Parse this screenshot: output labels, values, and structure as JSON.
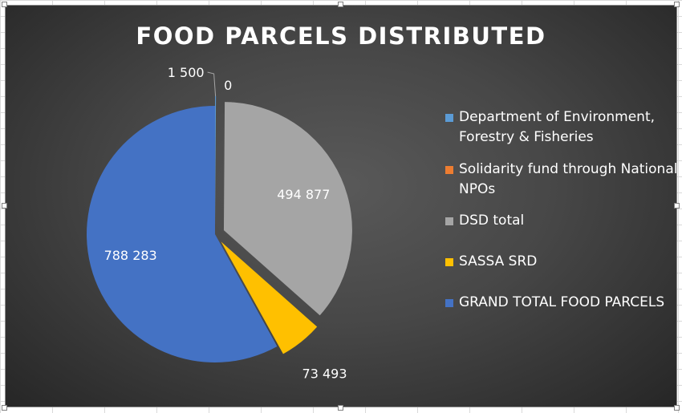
{
  "chart_data": {
    "type": "pie",
    "title": "FOOD PARCELS DISTRIBUTED",
    "slices": [
      {
        "name": "Department of Environment, Forestry & Fisheries",
        "value": 1500,
        "label": "1 500",
        "color": "#5b9bd5"
      },
      {
        "name": "Solidarity fund through National NPOs",
        "value": 0,
        "label": "0",
        "color": "#ed7d31"
      },
      {
        "name": "DSD total",
        "value": 494877,
        "label": "494 877",
        "color": "#a5a5a5"
      },
      {
        "name": "SASSA SRD",
        "value": 73493,
        "label": "73 493",
        "color": "#ffc000"
      },
      {
        "name": "GRAND TOTAL FOOD PARCELS",
        "value": 788283,
        "label": "788 283",
        "color": "#4472c4"
      }
    ],
    "legend_position": "right"
  }
}
